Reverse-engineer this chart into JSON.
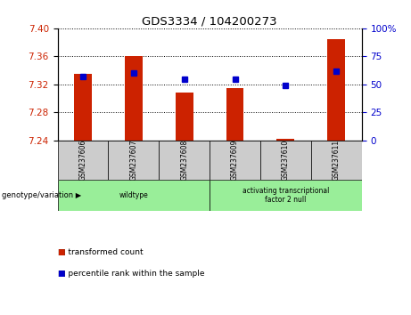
{
  "title": "GDS3334 / 104200273",
  "samples": [
    "GSM237606",
    "GSM237607",
    "GSM237608",
    "GSM237609",
    "GSM237610",
    "GSM237611"
  ],
  "transformed_counts": [
    7.335,
    7.36,
    7.308,
    7.315,
    7.242,
    7.385
  ],
  "percentile_ranks": [
    57,
    60,
    55,
    55,
    49,
    62
  ],
  "y_min": 7.24,
  "y_max": 7.4,
  "y_ticks": [
    7.24,
    7.28,
    7.32,
    7.36,
    7.4
  ],
  "y_right_ticks": [
    0,
    25,
    50,
    75,
    100
  ],
  "bar_color": "#cc2200",
  "dot_color": "#0000cc",
  "bg_color": "#ffffff",
  "cell_bg": "#cccccc",
  "group_color": "#99ee99",
  "groups": [
    {
      "label": "wildtype",
      "start": 0,
      "end": 2
    },
    {
      "label": "activating transcriptional\nfactor 2 null",
      "start": 3,
      "end": 5
    }
  ],
  "legend_items": [
    {
      "label": "transformed count",
      "color": "#cc2200"
    },
    {
      "label": "percentile rank within the sample",
      "color": "#0000cc"
    }
  ],
  "xlabel_left": "genotype/variation",
  "tick_label_color_left": "#cc2200",
  "tick_label_color_right": "#0000cc"
}
